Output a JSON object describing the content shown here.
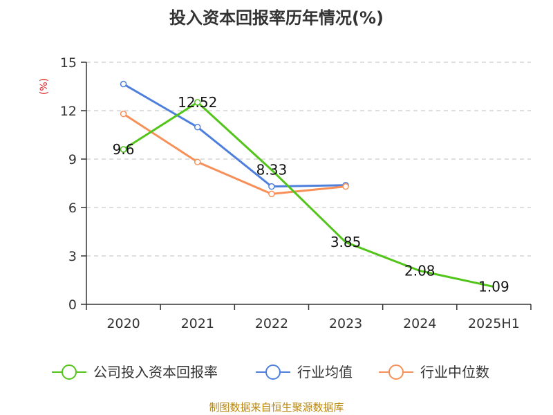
{
  "chart_data": {
    "type": "line",
    "title": "投入资本回报率历年情况(%)",
    "ylabel": "(%)",
    "xlabel": "",
    "ylim": [
      0,
      15
    ],
    "yticks": [
      0,
      3,
      6,
      9,
      12,
      15
    ],
    "grid": true,
    "categories": [
      "2020",
      "2021",
      "2022",
      "2023",
      "2024",
      "2025H1"
    ],
    "series": [
      {
        "name": "公司投入资本回报率",
        "color": "#52c41a",
        "values": [
          9.6,
          12.52,
          8.33,
          3.85,
          2.08,
          1.09
        ],
        "labels": [
          "9.6",
          "12.52",
          "8.33",
          "3.85",
          "2.08",
          "1.09"
        ],
        "markers": [
          true,
          true,
          false,
          false,
          false,
          false
        ]
      },
      {
        "name": "行业均值",
        "color": "#4e7fdd",
        "values": [
          13.65,
          10.98,
          7.3,
          7.38,
          null,
          null
        ],
        "markers": [
          true,
          true,
          true,
          true,
          false,
          false
        ]
      },
      {
        "name": "行业中位数",
        "color": "#f79058",
        "values": [
          11.8,
          8.82,
          6.84,
          7.3,
          null,
          null
        ],
        "markers": [
          true,
          true,
          true,
          true,
          false,
          false
        ]
      }
    ],
    "legend_position": "bottom",
    "source": "制图数据来自恒生聚源数据库"
  }
}
